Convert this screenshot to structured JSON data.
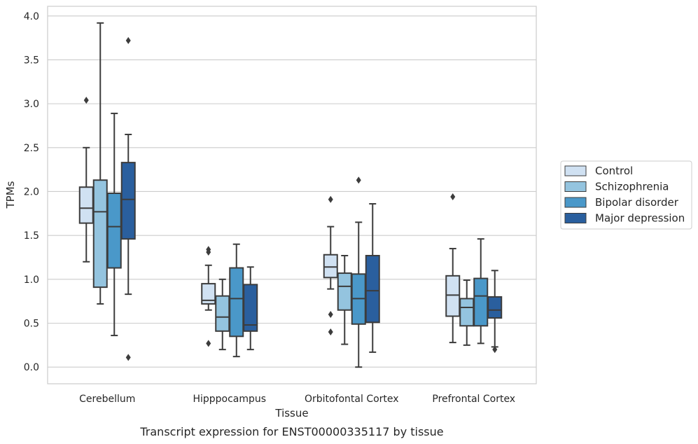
{
  "caption": "Transcript expression for ENST00000335117 by tissue",
  "chart_data": {
    "type": "box",
    "title": "",
    "xlabel": "Tissue",
    "ylabel": "TPMs",
    "ylim": [
      -0.19,
      4.11
    ],
    "yticks": [
      "0.0",
      "0.5",
      "1.0",
      "1.5",
      "2.0",
      "2.5",
      "3.0",
      "3.5",
      "4.0"
    ],
    "grid": "horizontal",
    "legend_position": "right",
    "categories": [
      "Cerebellum",
      "Hipppocampus",
      "Orbitofontal Cortex",
      "Prefrontal Cortex"
    ],
    "series": [
      {
        "name": "Control",
        "color": "#d0e1f2",
        "boxes": [
          {
            "q1": 1.64,
            "median": 1.81,
            "q3": 2.05,
            "whisker_low": 1.2,
            "whisker_high": 2.5,
            "outliers": [
              3.04
            ]
          },
          {
            "q1": 0.72,
            "median": 0.76,
            "q3": 0.95,
            "whisker_low": 0.65,
            "whisker_high": 1.16,
            "outliers": [
              1.31,
              1.34,
              0.27
            ]
          },
          {
            "q1": 1.02,
            "median": 1.14,
            "q3": 1.28,
            "whisker_low": 0.89,
            "whisker_high": 1.6,
            "outliers": [
              1.91,
              0.6,
              0.4
            ]
          },
          {
            "q1": 0.58,
            "median": 0.82,
            "q3": 1.04,
            "whisker_low": 0.28,
            "whisker_high": 1.35,
            "outliers": [
              1.94
            ]
          }
        ]
      },
      {
        "name": "Schizophrenia",
        "color": "#94c4df",
        "boxes": [
          {
            "q1": 0.91,
            "median": 1.77,
            "q3": 2.13,
            "whisker_low": 0.72,
            "whisker_high": 3.92,
            "outliers": []
          },
          {
            "q1": 0.41,
            "median": 0.57,
            "q3": 0.81,
            "whisker_low": 0.2,
            "whisker_high": 1.0,
            "outliers": []
          },
          {
            "q1": 0.65,
            "median": 0.92,
            "q3": 1.07,
            "whisker_low": 0.26,
            "whisker_high": 1.27,
            "outliers": []
          },
          {
            "q1": 0.47,
            "median": 0.68,
            "q3": 0.78,
            "whisker_low": 0.25,
            "whisker_high": 0.99,
            "outliers": []
          }
        ]
      },
      {
        "name": "Bipolar disorder",
        "color": "#4a98c9",
        "boxes": [
          {
            "q1": 1.13,
            "median": 1.6,
            "q3": 1.98,
            "whisker_low": 0.36,
            "whisker_high": 2.89,
            "outliers": []
          },
          {
            "q1": 0.35,
            "median": 0.78,
            "q3": 1.13,
            "whisker_low": 0.12,
            "whisker_high": 1.4,
            "outliers": []
          },
          {
            "q1": 0.49,
            "median": 0.78,
            "q3": 1.06,
            "whisker_low": 0.0,
            "whisker_high": 1.65,
            "outliers": [
              2.13
            ]
          },
          {
            "q1": 0.47,
            "median": 0.81,
            "q3": 1.01,
            "whisker_low": 0.27,
            "whisker_high": 1.46,
            "outliers": []
          }
        ]
      },
      {
        "name": "Major depression",
        "color": "#2a5f9e",
        "boxes": [
          {
            "q1": 1.46,
            "median": 1.91,
            "q3": 2.33,
            "whisker_low": 0.83,
            "whisker_high": 2.65,
            "outliers": [
              3.72,
              0.11
            ]
          },
          {
            "q1": 0.41,
            "median": 0.48,
            "q3": 0.94,
            "whisker_low": 0.2,
            "whisker_high": 1.14,
            "outliers": []
          },
          {
            "q1": 0.51,
            "median": 0.87,
            "q3": 1.27,
            "whisker_low": 0.17,
            "whisker_high": 1.86,
            "outliers": []
          },
          {
            "q1": 0.56,
            "median": 0.65,
            "q3": 0.8,
            "whisker_low": 0.23,
            "whisker_high": 1.1,
            "outliers": [
              0.2
            ]
          }
        ]
      }
    ]
  }
}
